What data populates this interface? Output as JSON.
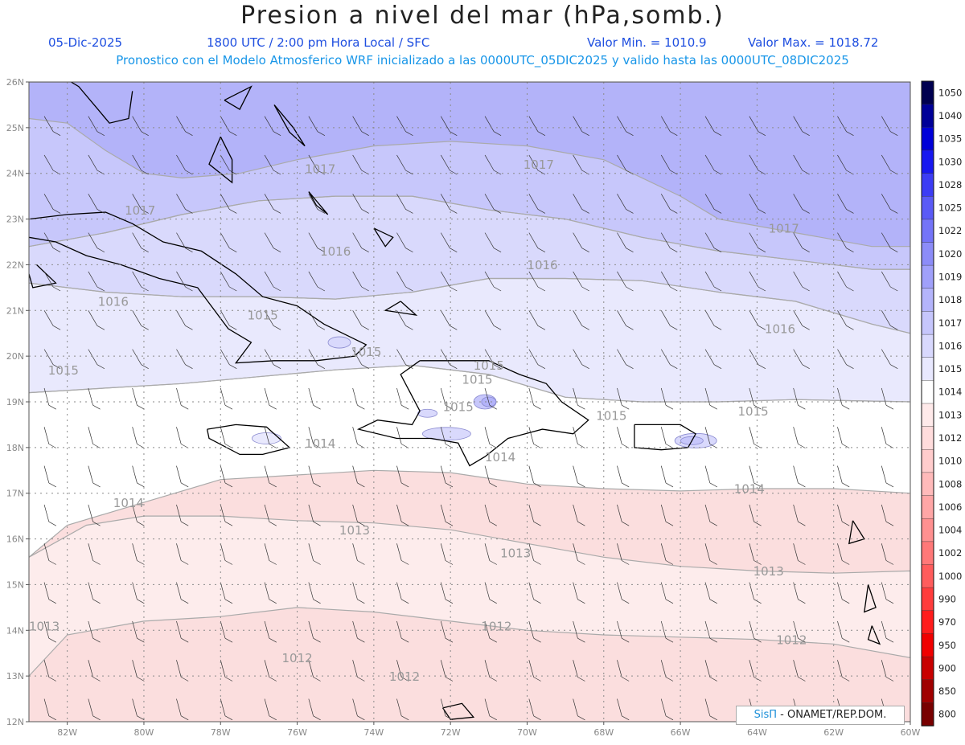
{
  "title": "Presion a nivel del mar (hPa,somb.)",
  "date": "05-Dic-2025",
  "time_info": "1800 UTC / 2:00 pm Hora Local / SFC",
  "min_label": "Valor Min. = 1010.9",
  "max_label": "Valor Max. = 1018.72",
  "forecast_info": "Pronostico con el Modelo Atmosferico WRF inicializado a las 0000UTC_05DIC2025 y valido hasta las  0000UTC_08DIC2025",
  "lat_labels": [
    "26N",
    "25N",
    "24N",
    "23N",
    "22N",
    "21N",
    "20N",
    "19N",
    "18N",
    "17N",
    "16N",
    "15N",
    "14N",
    "13N",
    "12N"
  ],
  "lon_labels": [
    "82W",
    "80W",
    "78W",
    "76W",
    "74W",
    "72W",
    "70W",
    "68W",
    "66W",
    "64W",
    "62W",
    "60W"
  ],
  "isobar_labels": [
    {
      "text": "1017",
      "lon": -80.1,
      "lat": 23.1
    },
    {
      "text": "1017",
      "lon": -75.4,
      "lat": 24.0
    },
    {
      "text": "1017",
      "lon": -69.7,
      "lat": 24.1
    },
    {
      "text": "1017",
      "lon": -63.3,
      "lat": 22.7
    },
    {
      "text": "1016",
      "lon": -75.0,
      "lat": 22.2
    },
    {
      "text": "1016",
      "lon": -69.6,
      "lat": 21.9
    },
    {
      "text": "1016",
      "lon": -80.8,
      "lat": 21.1
    },
    {
      "text": "1016",
      "lon": -63.4,
      "lat": 20.5
    },
    {
      "text": "1015",
      "lon": -76.9,
      "lat": 20.8
    },
    {
      "text": "1015",
      "lon": -74.2,
      "lat": 20.0
    },
    {
      "text": "1015",
      "lon": -82.1,
      "lat": 19.6
    },
    {
      "text": "1015",
      "lon": -71.0,
      "lat": 19.7
    },
    {
      "text": "1015",
      "lon": -71.8,
      "lat": 18.8
    },
    {
      "text": "1015",
      "lon": -67.8,
      "lat": 18.6
    },
    {
      "text": "1015",
      "lon": -64.1,
      "lat": 18.7
    },
    {
      "text": "1014",
      "lon": -75.4,
      "lat": 18.0
    },
    {
      "text": "1014",
      "lon": -70.7,
      "lat": 17.7
    },
    {
      "text": "1014",
      "lon": -64.2,
      "lat": 17.0
    },
    {
      "text": "1014",
      "lon": -80.4,
      "lat": 16.7
    },
    {
      "text": "1013",
      "lon": -74.5,
      "lat": 16.1
    },
    {
      "text": "1013",
      "lon": -70.3,
      "lat": 15.6
    },
    {
      "text": "1013",
      "lon": -63.7,
      "lat": 15.2
    },
    {
      "text": "1013",
      "lon": -82.6,
      "lat": 14.0
    },
    {
      "text": "1012",
      "lon": -70.8,
      "lat": 14.0
    },
    {
      "text": "1012",
      "lon": -63.1,
      "lat": 13.7
    },
    {
      "text": "1012",
      "lon": -76.0,
      "lat": 13.3
    },
    {
      "text": "1012",
      "lon": -73.2,
      "lat": 12.9
    },
    {
      "text": "1015",
      "lon": -71.3,
      "lat": 19.4
    }
  ],
  "colorbar": {
    "levels": [
      "1050",
      "1040",
      "1035",
      "1030",
      "1028",
      "1025",
      "1022",
      "1020",
      "1019",
      "1018",
      "1017",
      "1016",
      "1015",
      "1014",
      "1013",
      "1012",
      "1010",
      "1008",
      "1006",
      "1004",
      "1002",
      "1000",
      "990",
      "970",
      "950",
      "900",
      "850",
      "800"
    ],
    "colors": [
      "#000050",
      "#000098",
      "#0000d8",
      "#1818f0",
      "#3c3cf4",
      "#5a5af6",
      "#7474f8",
      "#8c8cf8",
      "#a0a0fa",
      "#b4b4fb",
      "#c6c6fc",
      "#d8d8fd",
      "#e8e8fe",
      "#ffffff",
      "#ffeaea",
      "#ffdcdc",
      "#ffcccc",
      "#ffbaba",
      "#ffa6a6",
      "#ff9090",
      "#ff7878",
      "#ff5c5c",
      "#ff3c3c",
      "#ff1c1c",
      "#f00000",
      "#c80000",
      "#a00000",
      "#780000"
    ]
  },
  "credit": {
    "logo": "SisΠ",
    "text": " - ONAMET/REP.DOM."
  },
  "map_colors": {
    "1018": "#b3b3f9",
    "1017": "#c7c7fb",
    "1016": "#d9d9fc",
    "1015": "#e9e9fd",
    "1014": "#ffffff",
    "1013": "#fdecec",
    "1012": "#fbdede",
    "isoline": "#aaaaaa",
    "coast": "#000000",
    "high": "#9898ef"
  }
}
